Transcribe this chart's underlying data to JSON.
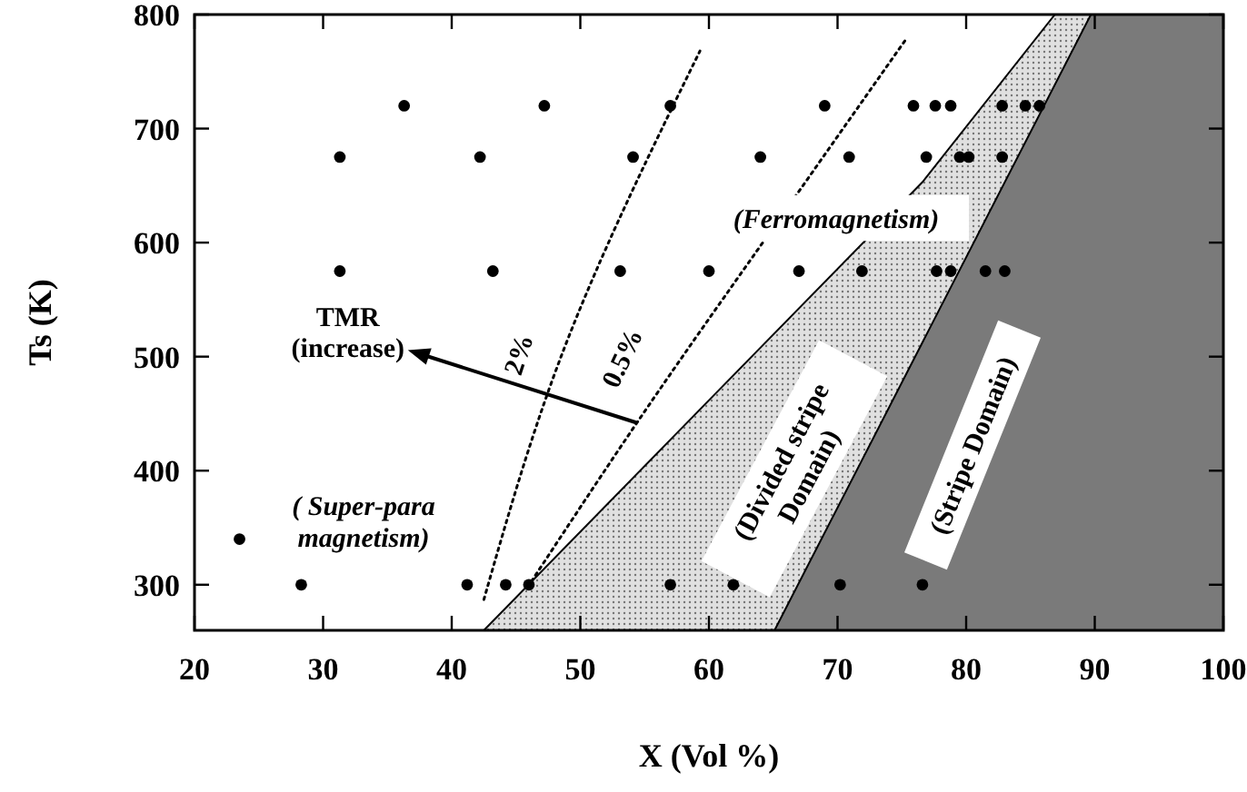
{
  "chart_data": {
    "type": "scatter",
    "xlabel": "X  (Vol %)",
    "ylabel": "Ts  (K)",
    "xlim": [
      20,
      100
    ],
    "ylim": [
      260,
      800
    ],
    "xticks": [
      20,
      30,
      40,
      50,
      60,
      70,
      80,
      90,
      100
    ],
    "yticks": [
      300,
      400,
      500,
      600,
      700,
      800
    ],
    "grid": false,
    "series": [
      {
        "type": "area",
        "color": "#e0e0e0",
        "x": [
          42.5,
          76.6,
          86.9,
          100
        ],
        "values": [
          260,
          653,
          800,
          800
        ]
      },
      {
        "type": "area",
        "color": "#7a7a7a",
        "x": [
          65.1,
          89.7,
          100
        ],
        "values": [
          260,
          800,
          800
        ]
      },
      {
        "type": "line",
        "line_style": "dotted",
        "color": "#000000",
        "x": [
          42.5,
          48.3,
          59.3
        ],
        "values": [
          287,
          494,
          768
        ]
      },
      {
        "type": "line",
        "line_style": "dotted",
        "color": "#000000",
        "x": [
          46.2,
          54.4,
          67.5,
          75.3
        ],
        "values": [
          303,
          442,
          653,
          778
        ]
      },
      {
        "marker": "circle",
        "color": "#000000",
        "x": [
          36.3,
          47.2,
          57,
          69,
          75.9,
          77.6,
          78.8,
          82.8,
          84.6,
          85.7,
          31.3,
          42.2,
          54.1,
          64,
          70.9,
          76.9,
          79.5,
          80.2,
          82.8,
          31.3,
          43.2,
          53.1,
          60,
          67,
          71.9,
          77.7,
          78.8,
          81.5,
          83,
          28.3,
          41.2,
          44.2,
          46,
          57,
          61.9,
          70.2,
          76.6,
          23.5
        ],
        "values": [
          720,
          720,
          720,
          720,
          720,
          720,
          720,
          720,
          720,
          720,
          675,
          675,
          675,
          675,
          675,
          675,
          675,
          675,
          675,
          575,
          575,
          575,
          575,
          575,
          575,
          575,
          575,
          575,
          575,
          300,
          300,
          300,
          300,
          300,
          300,
          300,
          300,
          340
        ]
      }
    ],
    "annotations": [
      "(Ferromagnetism)",
      "(Divided stripe\nDomain)",
      "(Stripe Domain)",
      "( Super-para\nmagnetism)",
      "2%",
      "0.5%",
      {
        "text": "TMR\n(increase)",
        "x": 54.4,
        "y": 442
      }
    ]
  }
}
